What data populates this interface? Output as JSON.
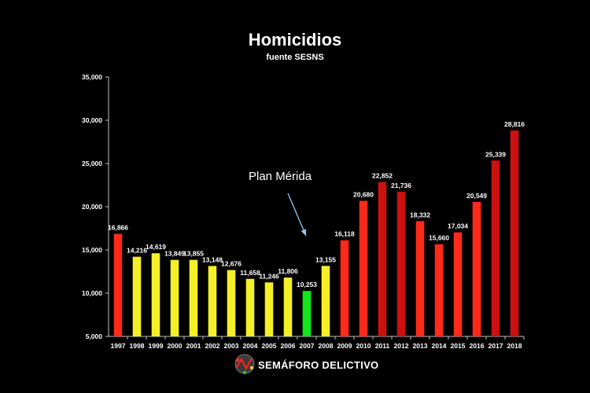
{
  "chart_data": {
    "type": "bar",
    "title": "Homicidios",
    "subtitle": "fuente SESNS",
    "xlabel": "",
    "ylabel": "",
    "ylim": [
      5000,
      35000
    ],
    "yticks": [
      "5,000",
      "10,000",
      "15,000",
      "20,000",
      "25,000",
      "30,000",
      "35,000"
    ],
    "ytick_values": [
      5000,
      10000,
      15000,
      20000,
      25000,
      30000,
      35000
    ],
    "grid": false,
    "categories": [
      "1997",
      "1998",
      "1999",
      "2000",
      "2001",
      "2002",
      "2003",
      "2004",
      "2005",
      "2006",
      "2007",
      "2008",
      "2009",
      "2010",
      "2011",
      "2012",
      "2013",
      "2014",
      "2015",
      "2016",
      "2017",
      "2018"
    ],
    "values": [
      16866,
      14216,
      14619,
      13849,
      13855,
      13148,
      12676,
      11658,
      11246,
      11806,
      10253,
      13155,
      16118,
      20680,
      22852,
      21736,
      18332,
      15660,
      17034,
      20549,
      25339,
      28816
    ],
    "value_labels": [
      "16,866",
      "14,216",
      "14,619",
      "13,849",
      "13,855",
      "13,148",
      "12,676",
      "11,658",
      "11,246",
      "11,806",
      "10,253",
      "13,155",
      "16,118",
      "20,680",
      "22,852",
      "21,736",
      "18,332",
      "15,660",
      "17,034",
      "20,549",
      "25,339",
      "28,816"
    ],
    "bar_colors": [
      "#ff2a1a",
      "#f4f028",
      "#f4f028",
      "#f4f028",
      "#f4f028",
      "#f4f028",
      "#f4f028",
      "#f4f028",
      "#f4f028",
      "#f4f028",
      "#14e61a",
      "#f4f028",
      "#ff2a1a",
      "#ff2a1a",
      "#cc1010",
      "#cc1010",
      "#ff2a1a",
      "#ff2a1a",
      "#ff2a1a",
      "#ff2a1a",
      "#cc1010",
      "#cc1010"
    ],
    "annotation": {
      "text": "Plan Mérida",
      "arrow_color": "#8ec7f5"
    }
  },
  "brand": {
    "name": "SEMÁFORO DELICTIVO"
  },
  "colors": {
    "background": "#000000",
    "text": "#ffffff",
    "axis": "#bfbfbf"
  }
}
